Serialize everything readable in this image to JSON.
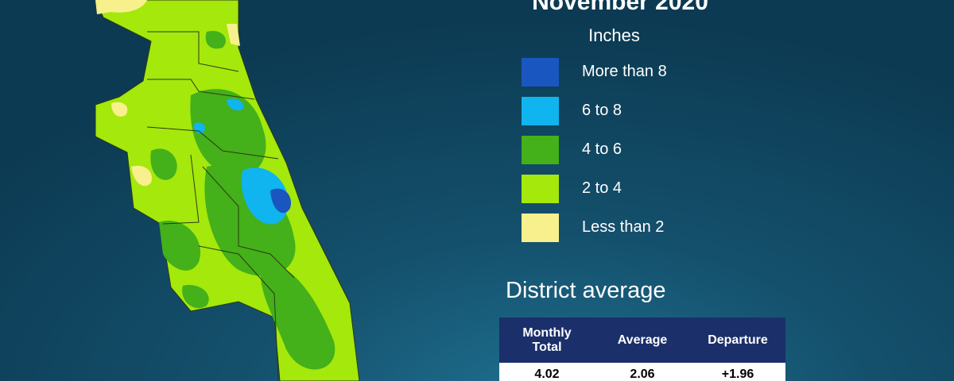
{
  "header": {
    "title": "November 2020"
  },
  "legend": {
    "units": "Inches",
    "items": [
      {
        "label": "More than 8",
        "color": "#1a56c0"
      },
      {
        "label": "6 to 8",
        "color": "#10b4ee"
      },
      {
        "label": "4 to 6",
        "color": "#44b01a"
      },
      {
        "label": "2 to 4",
        "color": "#a4e80c"
      },
      {
        "label": "Less than 2",
        "color": "#f8f08c"
      }
    ]
  },
  "district_average": {
    "title": "District average",
    "columns": [
      "Monthly\nTotal",
      "Average",
      "Departure"
    ],
    "rows": [
      [
        "4.02",
        "2.06",
        "+1.96"
      ]
    ]
  }
}
